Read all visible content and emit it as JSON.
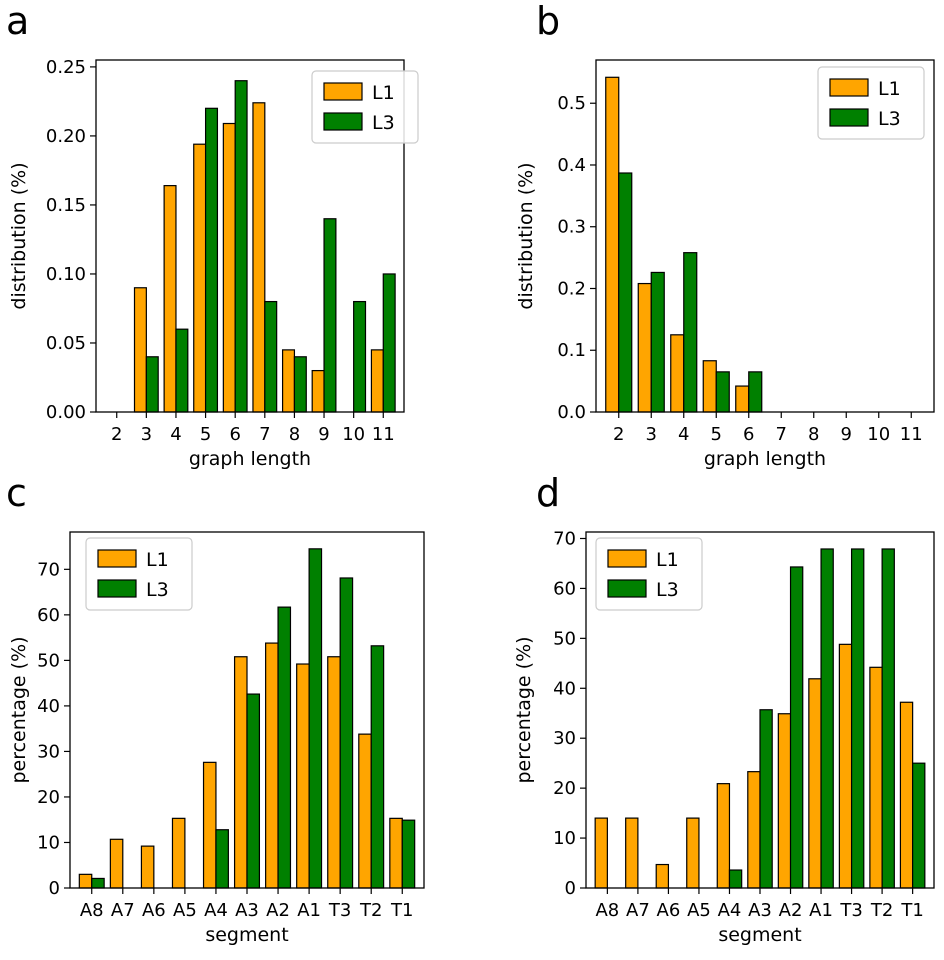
{
  "colors": {
    "L1": "#ffa500",
    "L3": "#008000",
    "edge": "#000000"
  },
  "chart_data": [
    {
      "panel": "a",
      "type": "bar",
      "xlabel": "graph length",
      "ylabel": "distribution (%)",
      "categories": [
        "2",
        "3",
        "4",
        "5",
        "6",
        "7",
        "8",
        "9",
        "10",
        "11"
      ],
      "ylim": [
        0,
        0.255
      ],
      "yticks": [
        0,
        0.05,
        0.1,
        0.15,
        0.2,
        0.25
      ],
      "ytick_labels": [
        "0.00",
        "0.05",
        "0.10",
        "0.15",
        "0.20",
        "0.25"
      ],
      "legend_position": "top-right",
      "series": [
        {
          "name": "L1",
          "values": [
            0,
            0.09,
            0.164,
            0.194,
            0.209,
            0.224,
            0.045,
            0.03,
            0,
            0.045
          ]
        },
        {
          "name": "L3",
          "values": [
            0,
            0.04,
            0.06,
            0.22,
            0.24,
            0.08,
            0.04,
            0.14,
            0.08,
            0.1
          ]
        }
      ]
    },
    {
      "panel": "b",
      "type": "bar",
      "xlabel": "graph length",
      "ylabel": "distribution (%)",
      "categories": [
        "2",
        "3",
        "4",
        "5",
        "6",
        "7",
        "8",
        "9",
        "10",
        "11"
      ],
      "ylim": [
        0,
        0.57
      ],
      "yticks": [
        0,
        0.1,
        0.2,
        0.3,
        0.4,
        0.5
      ],
      "ytick_labels": [
        "0.0",
        "0.1",
        "0.2",
        "0.3",
        "0.4",
        "0.5"
      ],
      "legend_position": "top-right",
      "series": [
        {
          "name": "L1",
          "values": [
            0.542,
            0.208,
            0.125,
            0.083,
            0.042,
            0,
            0,
            0,
            0,
            0
          ]
        },
        {
          "name": "L3",
          "values": [
            0.387,
            0.226,
            0.258,
            0.065,
            0.065,
            0,
            0,
            0,
            0,
            0
          ]
        }
      ]
    },
    {
      "panel": "c",
      "type": "bar",
      "xlabel": "segment",
      "ylabel": "percentage (%)",
      "categories": [
        "A8",
        "A7",
        "A6",
        "A5",
        "A4",
        "A3",
        "A2",
        "A1",
        "T3",
        "T2",
        "T1"
      ],
      "ylim": [
        0,
        78.2
      ],
      "yticks": [
        0,
        10,
        20,
        30,
        40,
        50,
        60,
        70
      ],
      "ytick_labels": [
        "0",
        "10",
        "20",
        "30",
        "40",
        "50",
        "60",
        "70"
      ],
      "legend_position": "top-left",
      "series": [
        {
          "name": "L1",
          "values": [
            3.0,
            10.7,
            9.2,
            15.3,
            27.6,
            50.8,
            53.8,
            49.2,
            50.8,
            33.8,
            15.3
          ]
        },
        {
          "name": "L3",
          "values": [
            2.1,
            0,
            0,
            0,
            12.8,
            42.6,
            61.7,
            74.5,
            68.1,
            53.2,
            14.9
          ]
        }
      ]
    },
    {
      "panel": "d",
      "type": "bar",
      "xlabel": "segment",
      "ylabel": "percentage (%)",
      "categories": [
        "A8",
        "A7",
        "A6",
        "A5",
        "A4",
        "A3",
        "A2",
        "A1",
        "T3",
        "T2",
        "T1"
      ],
      "ylim": [
        0,
        71.3
      ],
      "yticks": [
        0,
        10,
        20,
        30,
        40,
        50,
        60,
        70
      ],
      "ytick_labels": [
        "0",
        "10",
        "20",
        "30",
        "40",
        "50",
        "60",
        "70"
      ],
      "legend_position": "top-left",
      "series": [
        {
          "name": "L1",
          "values": [
            14.0,
            14.0,
            4.7,
            14.0,
            20.9,
            23.3,
            34.9,
            41.9,
            48.8,
            44.2,
            37.2
          ]
        },
        {
          "name": "L3",
          "values": [
            0,
            0,
            0,
            0,
            3.6,
            35.7,
            64.3,
            67.9,
            67.9,
            67.9,
            25.0
          ]
        }
      ]
    }
  ]
}
